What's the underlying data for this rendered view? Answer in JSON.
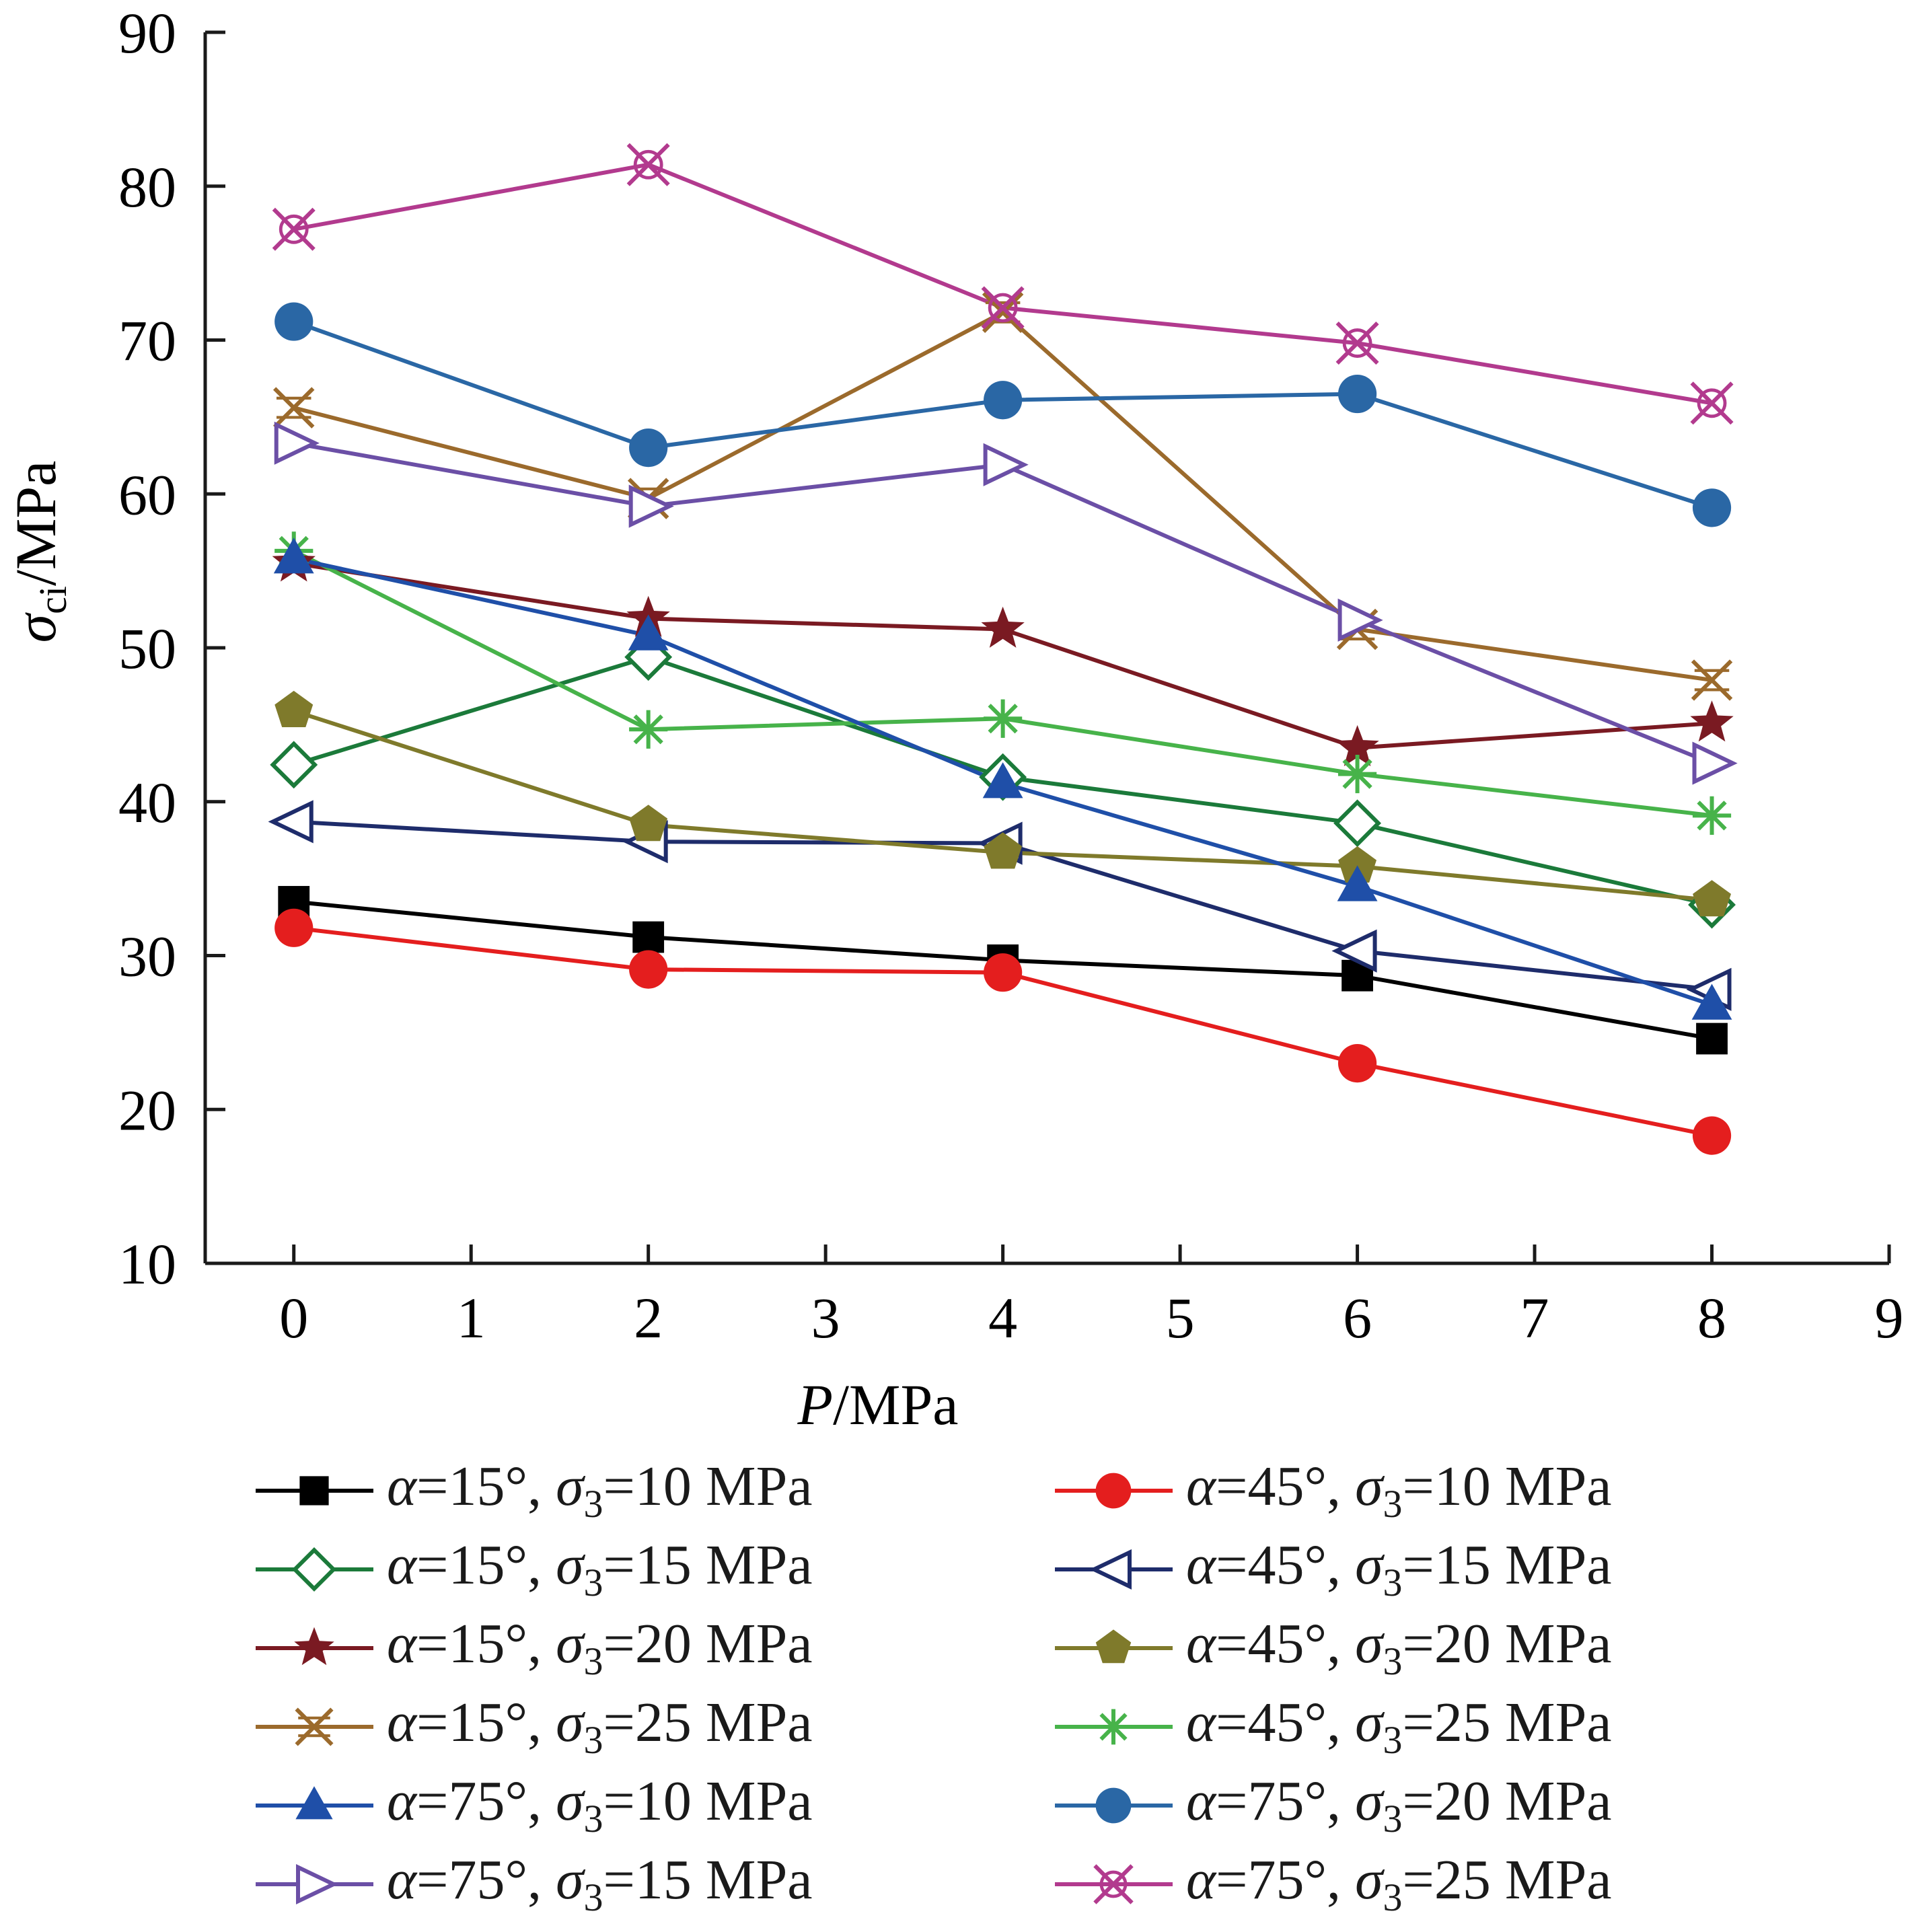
{
  "chart_data": {
    "type": "line",
    "xlabel": {
      "var": "P",
      "unit": "/MPa"
    },
    "ylabel": {
      "var": "σ",
      "sub": "ci",
      "unit": "/MPa"
    },
    "xlim": [
      -0.5,
      9
    ],
    "ylim": [
      10,
      90
    ],
    "xticks": [
      "0",
      "1",
      "2",
      "3",
      "4",
      "5",
      "6",
      "7",
      "8",
      "9"
    ],
    "yticks": [
      "10",
      "20",
      "30",
      "40",
      "50",
      "60",
      "70",
      "80",
      "90"
    ],
    "x": [
      0,
      2,
      4,
      6,
      8
    ],
    "series": [
      {
        "name": "α=15°, σ3=10 MPa",
        "alpha": "15",
        "s3": "10",
        "color": "#000000",
        "marker": "square-filled",
        "values": [
          33.5,
          31.2,
          29.7,
          28.7,
          24.6
        ]
      },
      {
        "name": "α=45°, σ3=10 MPa",
        "alpha": "45",
        "s3": "10",
        "color": "#e41e1e",
        "marker": "circle-filled",
        "values": [
          31.8,
          29.1,
          28.9,
          23.0,
          18.3
        ]
      },
      {
        "name": "α=15°, σ3=15 MPa",
        "alpha": "15",
        "s3": "15",
        "color": "#1b7a3a",
        "marker": "diamond-open",
        "values": [
          42.4,
          49.4,
          41.6,
          38.6,
          33.3
        ]
      },
      {
        "name": "α=45°, σ3=15 MPa",
        "alpha": "45",
        "s3": "15",
        "color": "#1e2c6b",
        "marker": "triangle-left-open",
        "values": [
          38.7,
          37.4,
          37.3,
          30.3,
          27.8
        ]
      },
      {
        "name": "α=15°, σ3=20 MPa",
        "alpha": "15",
        "s3": "20",
        "color": "#7a1a22",
        "marker": "star-filled",
        "values": [
          55.5,
          51.9,
          51.2,
          43.5,
          45.1
        ]
      },
      {
        "name": "α=45°, σ3=20 MPa",
        "alpha": "45",
        "s3": "20",
        "color": "#7f7a2b",
        "marker": "pentagon-filled",
        "values": [
          45.9,
          38.5,
          36.7,
          35.8,
          33.6
        ]
      },
      {
        "name": "α=15°, σ3=25 MPa",
        "alpha": "15",
        "s3": "25",
        "color": "#9b6a2c",
        "marker": "x-star-open",
        "values": [
          65.6,
          59.7,
          71.8,
          51.2,
          47.9
        ]
      },
      {
        "name": "α=45°, σ3=25 MPa",
        "alpha": "45",
        "s3": "25",
        "color": "#47b34a",
        "marker": "asterisk",
        "values": [
          56.3,
          44.7,
          45.4,
          41.8,
          39.1
        ]
      },
      {
        "name": "α=75°, σ3=10 MPa",
        "alpha": "75",
        "s3": "10",
        "color": "#1f4fa8",
        "marker": "triangle-up-filled",
        "values": [
          55.8,
          50.8,
          41.2,
          34.5,
          26.8
        ]
      },
      {
        "name": "α=75°, σ3=20 MPa",
        "alpha": "75",
        "s3": "20",
        "color": "#2a67a5",
        "marker": "circle-filled",
        "values": [
          71.2,
          63.0,
          66.1,
          66.5,
          59.1
        ]
      },
      {
        "name": "α=75°, σ3=15 MPa",
        "alpha": "75",
        "s3": "15",
        "color": "#6b4fa6",
        "marker": "triangle-right-open",
        "values": [
          63.3,
          59.2,
          61.9,
          51.8,
          42.5
        ]
      },
      {
        "name": "α=75°, σ3=25 MPa",
        "alpha": "75",
        "s3": "25",
        "color": "#b23a8e",
        "marker": "x-circle-open",
        "values": [
          77.2,
          81.4,
          72.1,
          69.8,
          65.9
        ]
      }
    ],
    "legend_position": "bottom",
    "grid": false
  }
}
